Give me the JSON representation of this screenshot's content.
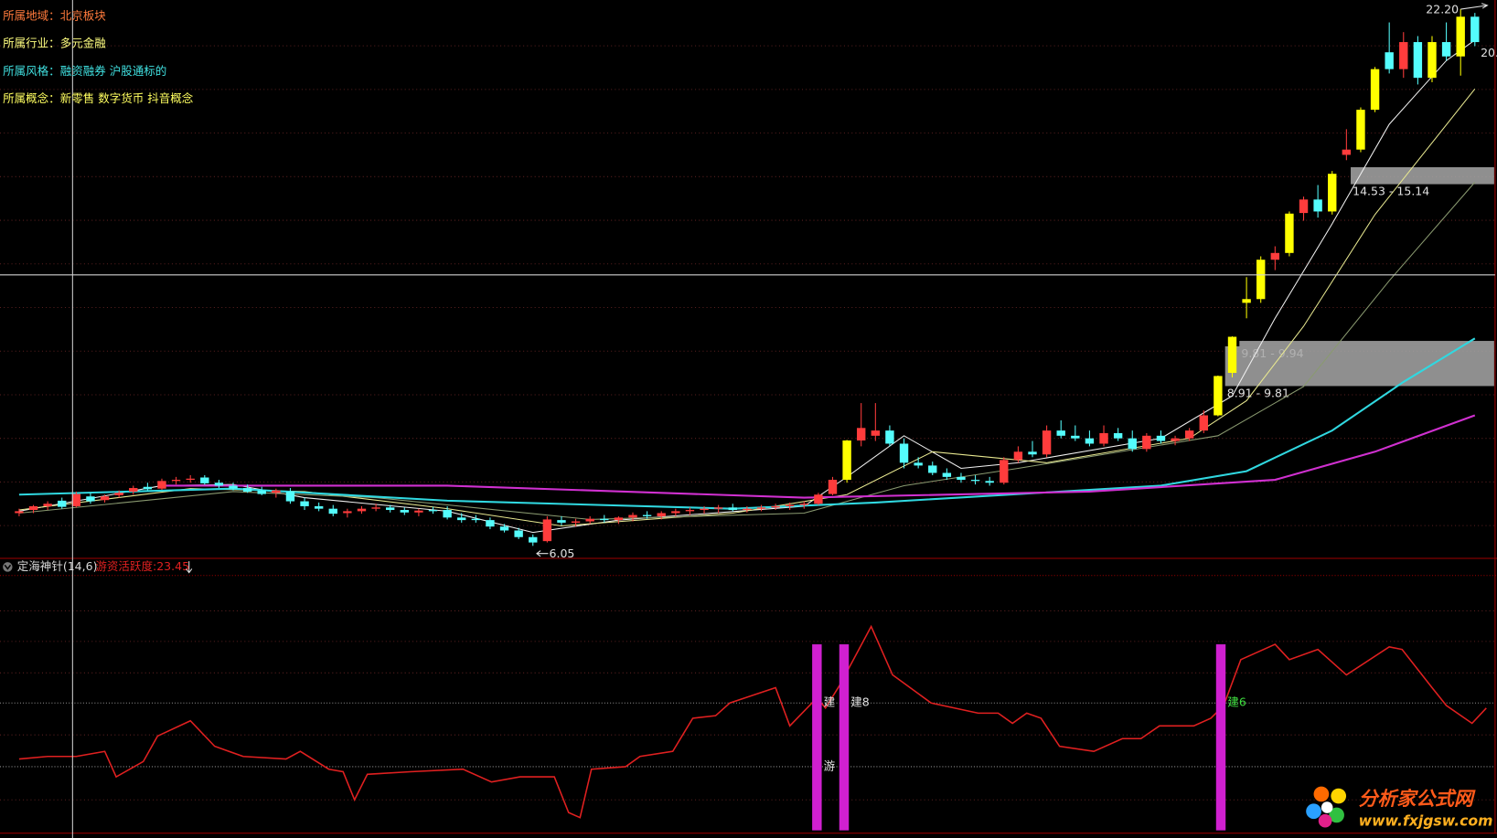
{
  "chart_data": [
    {
      "type": "candlestick",
      "info": [
        {
          "text": "所属地域：北京板块",
          "color": "#ff7a3c"
        },
        {
          "text": "所属行业：多元金融",
          "color": "#ffff80"
        },
        {
          "text": "所属风格：融资融券 沪股通标的",
          "color": "#40e0e0"
        },
        {
          "text": "所属概念：新零售 数字货币 抖音概念",
          "color": "#ffff60"
        }
      ],
      "xlim": [
        -1.34,
        103.55
      ],
      "ylim": [
        5.87,
        22.7
      ],
      "ylog": true,
      "up_color": "#ff3c3c",
      "down_color": "#54fcfc",
      "limit_color": "#ffff00",
      "candles": [
        [
          6.55,
          6.62,
          6.5,
          6.58
        ],
        [
          6.6,
          6.68,
          6.55,
          6.66
        ],
        [
          6.66,
          6.74,
          6.6,
          6.7
        ],
        [
          6.75,
          6.8,
          6.62,
          6.65
        ],
        [
          6.66,
          6.9,
          6.64,
          6.86
        ],
        [
          6.82,
          6.88,
          6.7,
          6.74
        ],
        [
          6.76,
          6.85,
          6.72,
          6.82
        ],
        [
          6.84,
          6.92,
          6.8,
          6.88
        ],
        [
          6.9,
          7.0,
          6.85,
          6.96
        ],
        [
          6.98,
          7.05,
          6.92,
          6.94
        ],
        [
          6.95,
          7.12,
          6.93,
          7.08
        ],
        [
          7.08,
          7.15,
          7.02,
          7.1
        ],
        [
          7.1,
          7.18,
          7.05,
          7.12
        ],
        [
          7.14,
          7.18,
          7.02,
          7.04
        ],
        [
          7.05,
          7.1,
          6.96,
          7.0
        ],
        [
          7.0,
          7.05,
          6.92,
          6.95
        ],
        [
          6.96,
          7.02,
          6.88,
          6.9
        ],
        [
          6.92,
          6.98,
          6.84,
          6.86
        ],
        [
          6.88,
          6.95,
          6.8,
          6.92
        ],
        [
          6.9,
          6.96,
          6.7,
          6.74
        ],
        [
          6.74,
          6.8,
          6.6,
          6.66
        ],
        [
          6.66,
          6.72,
          6.58,
          6.62
        ],
        [
          6.62,
          6.68,
          6.5,
          6.54
        ],
        [
          6.55,
          6.62,
          6.48,
          6.58
        ],
        [
          6.58,
          6.66,
          6.54,
          6.62
        ],
        [
          6.62,
          6.7,
          6.58,
          6.64
        ],
        [
          6.64,
          6.68,
          6.56,
          6.6
        ],
        [
          6.6,
          6.64,
          6.52,
          6.56
        ],
        [
          6.56,
          6.62,
          6.5,
          6.59
        ],
        [
          6.6,
          6.65,
          6.54,
          6.58
        ],
        [
          6.6,
          6.66,
          6.45,
          6.48
        ],
        [
          6.48,
          6.55,
          6.4,
          6.44
        ],
        [
          6.46,
          6.52,
          6.4,
          6.44
        ],
        [
          6.44,
          6.48,
          6.3,
          6.34
        ],
        [
          6.34,
          6.38,
          6.25,
          6.28
        ],
        [
          6.28,
          6.32,
          6.15,
          6.18
        ],
        [
          6.18,
          6.22,
          6.05,
          6.1
        ],
        [
          6.12,
          6.5,
          6.1,
          6.45
        ],
        [
          6.44,
          6.5,
          6.36,
          6.4
        ],
        [
          6.4,
          6.46,
          6.34,
          6.42
        ],
        [
          6.42,
          6.5,
          6.38,
          6.46
        ],
        [
          6.46,
          6.52,
          6.4,
          6.44
        ],
        [
          6.44,
          6.5,
          6.38,
          6.48
        ],
        [
          6.48,
          6.56,
          6.42,
          6.52
        ],
        [
          6.52,
          6.58,
          6.46,
          6.5
        ],
        [
          6.5,
          6.58,
          6.45,
          6.55
        ],
        [
          6.55,
          6.62,
          6.5,
          6.58
        ],
        [
          6.58,
          6.64,
          6.52,
          6.6
        ],
        [
          6.6,
          6.66,
          6.54,
          6.62
        ],
        [
          6.62,
          6.68,
          6.55,
          6.64
        ],
        [
          6.64,
          6.7,
          6.58,
          6.6
        ],
        [
          6.6,
          6.66,
          6.56,
          6.62
        ],
        [
          6.62,
          6.68,
          6.58,
          6.64
        ],
        [
          6.64,
          6.7,
          6.6,
          6.66
        ],
        [
          6.66,
          6.72,
          6.6,
          6.68
        ],
        [
          6.68,
          6.74,
          6.62,
          6.7
        ],
        [
          6.7,
          6.88,
          6.68,
          6.85
        ],
        [
          6.86,
          7.15,
          6.84,
          7.1
        ],
        [
          7.1,
          7.82,
          7.05,
          7.81
        ],
        [
          7.81,
          8.55,
          7.7,
          8.05
        ],
        [
          7.9,
          8.55,
          7.8,
          8.0
        ],
        [
          8.0,
          8.1,
          7.7,
          7.75
        ],
        [
          7.75,
          7.85,
          7.3,
          7.4
        ],
        [
          7.4,
          7.5,
          7.3,
          7.35
        ],
        [
          7.35,
          7.42,
          7.18,
          7.22
        ],
        [
          7.22,
          7.3,
          7.1,
          7.15
        ],
        [
          7.15,
          7.22,
          7.05,
          7.1
        ],
        [
          7.1,
          7.18,
          7.02,
          7.08
        ],
        [
          7.08,
          7.15,
          7.0,
          7.05
        ],
        [
          7.05,
          7.5,
          7.02,
          7.45
        ],
        [
          7.45,
          7.7,
          7.4,
          7.6
        ],
        [
          7.6,
          7.8,
          7.5,
          7.55
        ],
        [
          7.55,
          8.1,
          7.5,
          8.0
        ],
        [
          8.0,
          8.2,
          7.85,
          7.9
        ],
        [
          7.9,
          8.1,
          7.8,
          7.85
        ],
        [
          7.85,
          8.0,
          7.7,
          7.75
        ],
        [
          7.75,
          8.1,
          7.7,
          7.95
        ],
        [
          7.95,
          8.05,
          7.8,
          7.85
        ],
        [
          7.85,
          8.0,
          7.6,
          7.65
        ],
        [
          7.65,
          7.95,
          7.6,
          7.9
        ],
        [
          7.9,
          8.0,
          7.75,
          7.8
        ],
        [
          7.8,
          7.9,
          7.72,
          7.85
        ],
        [
          7.85,
          8.05,
          7.8,
          8.0
        ],
        [
          8.0,
          8.4,
          7.95,
          8.3
        ],
        [
          8.3,
          9.14,
          8.28,
          9.13
        ],
        [
          9.2,
          10.05,
          9.1,
          10.04
        ],
        [
          10.9,
          11.6,
          10.5,
          11.0
        ],
        [
          11.0,
          12.2,
          10.9,
          12.1
        ],
        [
          12.1,
          12.5,
          11.8,
          12.3
        ],
        [
          12.3,
          13.6,
          12.2,
          13.53
        ],
        [
          13.55,
          14.1,
          13.3,
          14.0
        ],
        [
          14.0,
          14.5,
          13.4,
          13.6
        ],
        [
          13.6,
          15.0,
          13.5,
          14.9
        ],
        [
          15.6,
          16.6,
          15.4,
          15.8
        ],
        [
          15.8,
          17.5,
          15.7,
          17.4
        ],
        [
          17.4,
          19.3,
          17.3,
          19.2
        ],
        [
          20.0,
          21.5,
          19.0,
          19.2
        ],
        [
          19.2,
          21.0,
          18.8,
          20.5
        ],
        [
          20.5,
          20.8,
          18.5,
          18.8
        ],
        [
          18.8,
          20.8,
          18.6,
          20.5
        ],
        [
          20.5,
          21.5,
          19.6,
          19.8
        ],
        [
          19.8,
          22.2,
          18.9,
          21.8
        ],
        [
          21.8,
          22.0,
          20.3,
          20.5
        ]
      ],
      "ma": [
        {
          "color": "#f0f0f0",
          "x": [
            0,
            10,
            15,
            20,
            30,
            36,
            42,
            55,
            58,
            62,
            66,
            70,
            80,
            85,
            88,
            92,
            96,
            100,
            102
          ],
          "values": [
            6.58,
            7.0,
            7.02,
            6.8,
            6.58,
            6.25,
            6.44,
            6.66,
            7.15,
            7.9,
            7.3,
            7.4,
            7.85,
            8.7,
            10.5,
            13.2,
            16.8,
            19.6,
            20.6
          ]
        },
        {
          "color": "#e8e890",
          "x": [
            0,
            12,
            20,
            30,
            38,
            50,
            58,
            64,
            72,
            82,
            86,
            90,
            95,
            102
          ],
          "values": [
            6.6,
            6.95,
            6.9,
            6.62,
            6.35,
            6.55,
            6.85,
            7.6,
            7.4,
            7.85,
            8.6,
            10.3,
            13.5,
            18.3
          ]
        },
        {
          "color": "#8a9a70",
          "x": [
            0,
            15,
            25,
            40,
            55,
            62,
            70,
            84,
            90,
            96,
            102
          ],
          "values": [
            6.55,
            6.9,
            6.8,
            6.45,
            6.55,
            7.0,
            7.3,
            7.9,
            8.9,
            11.5,
            14.6
          ]
        },
        {
          "color": "#30d8e0",
          "x": [
            0,
            15,
            30,
            50,
            60,
            80,
            86,
            92,
            97,
            102
          ],
          "values": [
            6.85,
            6.95,
            6.75,
            6.62,
            6.72,
            7.0,
            7.25,
            8.0,
            9.0,
            10.0
          ]
        },
        {
          "color": "#d030d0",
          "x": [
            10,
            30,
            55,
            75,
            88,
            95,
            102
          ],
          "values": [
            7.0,
            7.0,
            6.8,
            6.9,
            7.1,
            7.6,
            8.3
          ]
        }
      ],
      "zones": [
        {
          "start": 93.3,
          "low": 14.53,
          "high": 15.14,
          "label": "14.53 - 15.14"
        },
        {
          "start": 85.5,
          "low": 9.81,
          "high": 9.94,
          "label": "9.81 - 9.94"
        },
        {
          "start": 84.5,
          "low": 8.91,
          "high": 9.81,
          "label": "8.91 - 9.81"
        }
      ],
      "high_mark": {
        "index": 101,
        "value": 22.2,
        "label": "22.20"
      },
      "low_mark": {
        "index": 36,
        "value": 6.05
      },
      "last_price_label": "20."
    },
    {
      "type": "line",
      "name": "定海神针(14,6)",
      "value_name": "游资活跃度:",
      "value": 23.45,
      "color": "#e02020",
      "xlim": [
        -1.34,
        103.55
      ],
      "ylim": [
        0,
        100
      ],
      "hlines": [
        50,
        25
      ],
      "x": [
        0,
        2,
        4,
        6,
        6.8,
        8.7,
        9.7,
        12,
        13.7,
        15.7,
        18.7,
        19.7,
        21.7,
        22.7,
        23.5,
        24.4,
        27.4,
        31.1,
        33.1,
        35.1,
        37.5,
        38.5,
        39.3,
        40.1,
        42.5,
        43.5,
        45.8,
        47.2,
        48.8,
        49.8,
        53,
        54,
        55.9,
        56.5,
        57.5,
        59.7,
        61.2,
        63.9,
        67.2,
        68.6,
        69.6,
        70.6,
        71.6,
        72.9,
        75.3,
        77.3,
        78.6,
        79.9,
        82.3,
        83.5,
        84.4,
        85.6,
        88,
        89,
        91,
        93,
        96,
        96.9,
        99,
        100,
        101.8,
        102.8
      ],
      "values": [
        28,
        29,
        29,
        31,
        21,
        27,
        37,
        43,
        33,
        29,
        28,
        31,
        24,
        23,
        12,
        22,
        23,
        24,
        19,
        21,
        21,
        7,
        5,
        24,
        25,
        29,
        31,
        44,
        45,
        50,
        56,
        41,
        52,
        48,
        57,
        80,
        61,
        50,
        46,
        46,
        42,
        46,
        44,
        33,
        31,
        36,
        36,
        41,
        41,
        44,
        49,
        67,
        73,
        67,
        71,
        61,
        72,
        71,
        56,
        49,
        42,
        48
      ],
      "bars": {
        "color": "#d020d0",
        "x": [
          55.9,
          57.8,
          84.2
        ],
        "values": [
          73,
          73,
          73
        ]
      },
      "annotations": [
        {
          "x": 55.9,
          "y": 50,
          "text": "建",
          "color": "#e0e0e0"
        },
        {
          "x": 57.8,
          "y": 50,
          "text": "建8",
          "color": "#e0e0e0"
        },
        {
          "x": 84.2,
          "y": 50,
          "text": "建6",
          "color": "#40e040"
        },
        {
          "x": 55.9,
          "y": 25,
          "text": "游",
          "color": "#e0e0e0"
        }
      ]
    }
  ],
  "watermark": {
    "title": "分析家公式网",
    "url": "www.fxjgsw.com"
  }
}
